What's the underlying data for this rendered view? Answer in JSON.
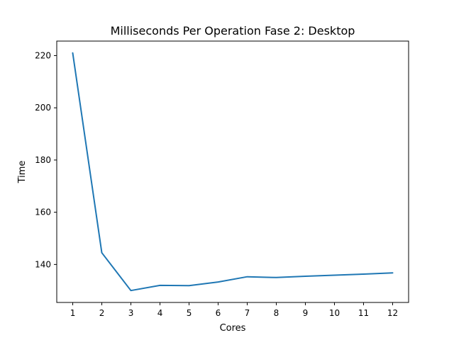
{
  "chart_data": {
    "type": "line",
    "title": "Milliseconds Per Operation Fase 2: Desktop",
    "xlabel": "Cores",
    "ylabel": "Time",
    "x": [
      1,
      2,
      3,
      4,
      5,
      6,
      7,
      8,
      9,
      10,
      11,
      12
    ],
    "series": [
      {
        "color": "#1f77b4",
        "values": [
          221,
          144.5,
          130,
          132,
          131.9,
          133.3,
          135.3,
          135,
          135.5,
          135.9,
          136.3,
          136.8
        ]
      }
    ],
    "xticks": [
      "1",
      "2",
      "3",
      "4",
      "5",
      "6",
      "7",
      "8",
      "9",
      "10",
      "11",
      "12"
    ],
    "yticks": [
      "140",
      "160",
      "180",
      "200",
      "220"
    ],
    "xlim": [
      0.45,
      12.55
    ],
    "ylim": [
      125.45,
      225.55
    ],
    "grid": false,
    "legend": "none"
  }
}
